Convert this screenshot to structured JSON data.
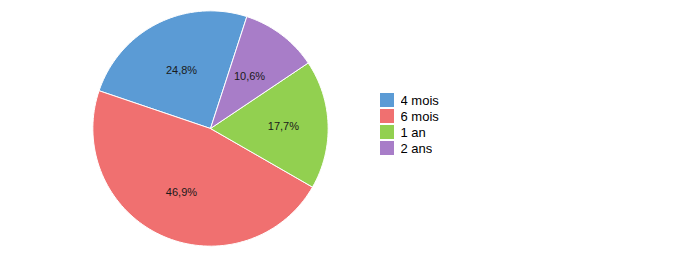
{
  "chart_data": {
    "type": "pie",
    "categories": [
      "4 mois",
      "6 mois",
      "1 an",
      "2 ans"
    ],
    "values": [
      24.8,
      46.9,
      17.7,
      10.6
    ],
    "value_labels": [
      "24,8%",
      "46,9%",
      "17,7%",
      "10,6%"
    ],
    "colors": [
      "#5B9BD5",
      "#F07070",
      "#92D050",
      "#A87DC8"
    ],
    "data_labels": true,
    "legend": "right"
  }
}
